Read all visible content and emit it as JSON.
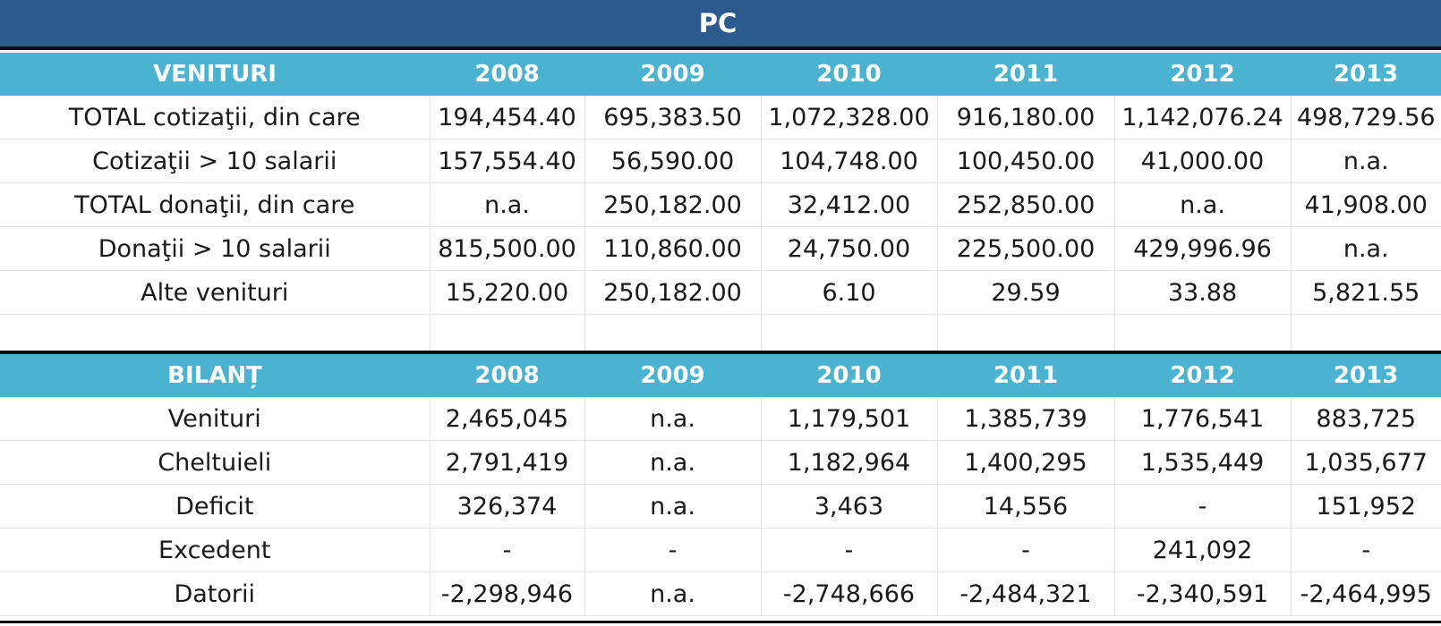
{
  "title": "PC",
  "venituri": {
    "headers": [
      "VENITURI",
      "2008",
      "2009",
      "2010",
      "2011",
      "2012",
      "2013"
    ],
    "rows": [
      [
        "TOTAL cotizaţii, din care",
        "194,454.40",
        "695,383.50",
        "1,072,328.00",
        "916,180.00",
        "1,142,076.24",
        "498,729.56"
      ],
      [
        "Cotizaţii > 10 salarii",
        "157,554.40",
        "56,590.00",
        "104,748.00",
        "100,450.00",
        "41,000.00",
        "n.a."
      ],
      [
        "TOTAL donaţii, din care",
        "n.a.",
        "250,182.00",
        "32,412.00",
        "252,850.00",
        "n.a.",
        "41,908.00"
      ],
      [
        "Donaţii > 10 salarii",
        "815,500.00",
        "110,860.00",
        "24,750.00",
        "225,500.00",
        "429,996.96",
        "n.a."
      ],
      [
        "Alte venituri",
        "15,220.00",
        "250,182.00",
        "6.10",
        "29.59",
        "33.88",
        "5,821.55"
      ],
      [
        "",
        "",
        "",
        "",
        "",
        "",
        ""
      ]
    ]
  },
  "bilant": {
    "headers": [
      "BILANȚ",
      "2008",
      "2009",
      "2010",
      "2011",
      "2012",
      "2013"
    ],
    "rows": [
      [
        "Venituri",
        "2,465,045",
        "n.a.",
        "1,179,501",
        "1,385,739",
        "1,776,541",
        "883,725"
      ],
      [
        "Cheltuieli",
        "2,791,419",
        "n.a.",
        "1,182,964",
        "1,400,295",
        "1,535,449",
        "1,035,677"
      ],
      [
        "Deficit",
        "326,374",
        "n.a.",
        "3,463",
        "14,556",
        "-",
        "151,952"
      ],
      [
        "Excedent",
        "-",
        "-",
        "-",
        "-",
        "241,092",
        "-"
      ],
      [
        "Datorii",
        "-2,298,946",
        "n.a.",
        "-2,748,666",
        "-2,484,321",
        "-2,340,591",
        "-2,464,995"
      ]
    ]
  }
}
